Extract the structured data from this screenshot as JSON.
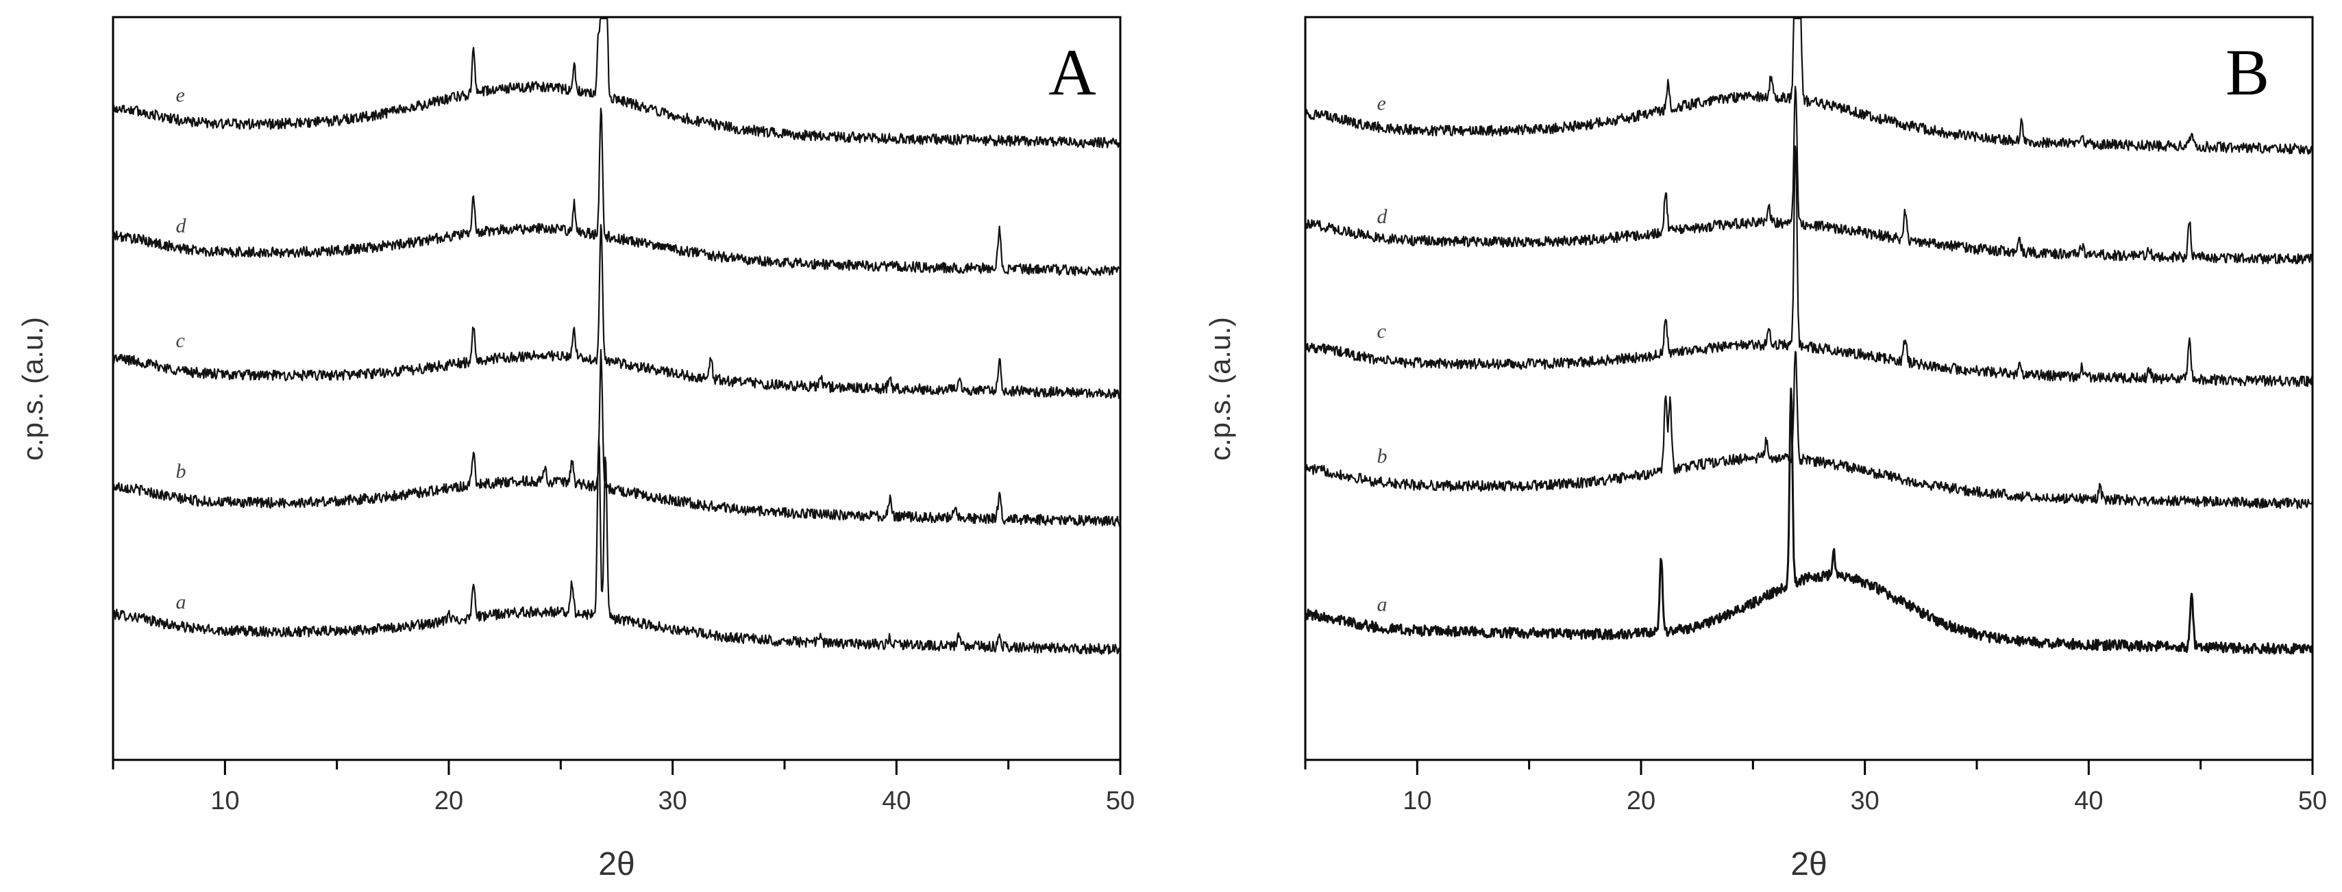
{
  "chart_data": [
    {
      "type": "line",
      "panel_label": "A",
      "xlabel": "2θ",
      "ylabel": "c.p.s. (a.u.)",
      "xlim": [
        5,
        50
      ],
      "xticks": [
        10,
        20,
        30,
        40,
        50
      ],
      "yticks_shown": false,
      "grid": false,
      "series": [
        {
          "name": "a",
          "baseline": 1.0,
          "hump_center": 24.5,
          "hump_amp": 0.22,
          "hump_width": 6.0,
          "peaks": [
            [
              20.0,
              0.07
            ],
            [
              21.1,
              0.32
            ],
            [
              25.5,
              0.28
            ],
            [
              26.7,
              1.55
            ],
            [
              27.0,
              1.4
            ],
            [
              36.6,
              0.07
            ],
            [
              39.7,
              0.06
            ],
            [
              42.8,
              0.09
            ],
            [
              44.6,
              0.07
            ]
          ]
        },
        {
          "name": "b",
          "baseline": 2.1,
          "hump_center": 24.0,
          "hump_amp": 0.24,
          "hump_width": 6.5,
          "peaks": [
            [
              21.1,
              0.3
            ],
            [
              24.3,
              0.12
            ],
            [
              25.5,
              0.18
            ],
            [
              26.8,
              1.15
            ],
            [
              39.7,
              0.15
            ],
            [
              42.6,
              0.11
            ],
            [
              44.6,
              0.2
            ]
          ]
        },
        {
          "name": "c",
          "baseline": 3.2,
          "hump_center": 24.5,
          "hump_amp": 0.22,
          "hump_width": 6.0,
          "peaks": [
            [
              21.1,
              0.28
            ],
            [
              25.6,
              0.22
            ],
            [
              26.8,
              1.2
            ],
            [
              31.7,
              0.2
            ],
            [
              36.6,
              0.1
            ],
            [
              39.7,
              0.1
            ],
            [
              42.8,
              0.08
            ],
            [
              44.6,
              0.26
            ]
          ]
        },
        {
          "name": "d",
          "baseline": 4.25,
          "hump_center": 24.0,
          "hump_amp": 0.26,
          "hump_width": 6.5,
          "peaks": [
            [
              21.1,
              0.3
            ],
            [
              25.6,
              0.24
            ],
            [
              26.8,
              1.1
            ],
            [
              44.6,
              0.36
            ]
          ]
        },
        {
          "name": "e",
          "baseline": 5.35,
          "hump_center": 24.0,
          "hump_amp": 0.38,
          "hump_width": 6.5,
          "peaks": [
            [
              21.1,
              0.36
            ],
            [
              25.6,
              0.2
            ],
            [
              26.7,
              0.55
            ],
            [
              26.9,
              3.25
            ],
            [
              27.0,
              2.2
            ]
          ]
        }
      ]
    },
    {
      "type": "line",
      "panel_label": "B",
      "xlabel": "2θ",
      "ylabel": "c.p.s. (a.u.)",
      "xlim": [
        5,
        50
      ],
      "xticks": [
        10,
        20,
        30,
        40,
        50
      ],
      "yticks_shown": false,
      "grid": false,
      "series": [
        {
          "name": "a",
          "baseline": 1.0,
          "hump_center": 28.5,
          "hump_amp": 0.55,
          "hump_width": 4.5,
          "peaks": [
            [
              20.9,
              0.65
            ],
            [
              26.7,
              1.7
            ],
            [
              28.6,
              0.2
            ],
            [
              44.6,
              0.45
            ]
          ]
        },
        {
          "name": "b",
          "baseline": 2.25,
          "hump_center": 26.0,
          "hump_amp": 0.3,
          "hump_width": 6.5,
          "peaks": [
            [
              21.1,
              0.68
            ],
            [
              21.3,
              0.6
            ],
            [
              25.6,
              0.15
            ],
            [
              26.9,
              0.95
            ],
            [
              40.5,
              0.1
            ]
          ]
        },
        {
          "name": "c",
          "baseline": 3.3,
          "hump_center": 26.0,
          "hump_amp": 0.22,
          "hump_width": 6.5,
          "peaks": [
            [
              21.1,
              0.32
            ],
            [
              25.7,
              0.15
            ],
            [
              26.9,
              1.75
            ],
            [
              31.8,
              0.2
            ],
            [
              36.9,
              0.1
            ],
            [
              39.7,
              0.08
            ],
            [
              42.7,
              0.07
            ],
            [
              44.5,
              0.32
            ]
          ]
        },
        {
          "name": "d",
          "baseline": 4.35,
          "hump_center": 26.0,
          "hump_amp": 0.22,
          "hump_width": 6.5,
          "peaks": [
            [
              21.1,
              0.34
            ],
            [
              25.7,
              0.15
            ],
            [
              26.9,
              1.2
            ],
            [
              31.8,
              0.25
            ],
            [
              36.9,
              0.1
            ],
            [
              39.7,
              0.08
            ],
            [
              42.7,
              0.07
            ],
            [
              44.5,
              0.3
            ]
          ]
        },
        {
          "name": "e",
          "baseline": 5.3,
          "hump_center": 25.5,
          "hump_amp": 0.35,
          "hump_width": 6.5,
          "peaks": [
            [
              21.2,
              0.22
            ],
            [
              25.8,
              0.18
            ],
            [
              26.9,
              1.7
            ],
            [
              27.1,
              0.9
            ],
            [
              37.0,
              0.18
            ],
            [
              39.7,
              0.07
            ],
            [
              44.6,
              0.15
            ]
          ]
        }
      ]
    }
  ]
}
